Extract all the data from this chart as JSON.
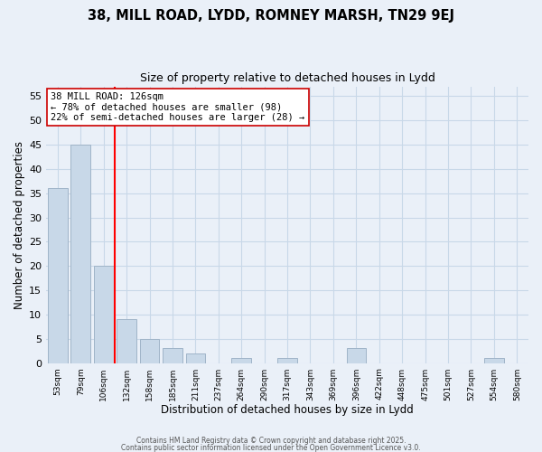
{
  "title1": "38, MILL ROAD, LYDD, ROMNEY MARSH, TN29 9EJ",
  "title2": "Size of property relative to detached houses in Lydd",
  "xlabel": "Distribution of detached houses by size in Lydd",
  "ylabel": "Number of detached properties",
  "bar_labels": [
    "53sqm",
    "79sqm",
    "106sqm",
    "132sqm",
    "158sqm",
    "185sqm",
    "211sqm",
    "237sqm",
    "264sqm",
    "290sqm",
    "317sqm",
    "343sqm",
    "369sqm",
    "396sqm",
    "422sqm",
    "448sqm",
    "475sqm",
    "501sqm",
    "527sqm",
    "554sqm",
    "580sqm"
  ],
  "bar_values": [
    36,
    45,
    20,
    9,
    5,
    3,
    2,
    0,
    1,
    0,
    1,
    0,
    0,
    3,
    0,
    0,
    0,
    0,
    0,
    1,
    0
  ],
  "bar_color": "#c8d8e8",
  "bar_edge_color": "#a0b4c8",
  "property_line_color": "red",
  "property_line_x": 2.5,
  "annotation_title": "38 MILL ROAD: 126sqm",
  "annotation_line1": "← 78% of detached houses are smaller (98)",
  "annotation_line2": "22% of semi-detached houses are larger (28) →",
  "annotation_box_color": "white",
  "annotation_box_edge": "#cc0000",
  "ylim": [
    0,
    57
  ],
  "yticks": [
    0,
    5,
    10,
    15,
    20,
    25,
    30,
    35,
    40,
    45,
    50,
    55
  ],
  "grid_color": "#c8d8e8",
  "footer1": "Contains HM Land Registry data © Crown copyright and database right 2025.",
  "footer2": "Contains public sector information licensed under the Open Government Licence v3.0.",
  "bg_color": "#eaf0f8"
}
